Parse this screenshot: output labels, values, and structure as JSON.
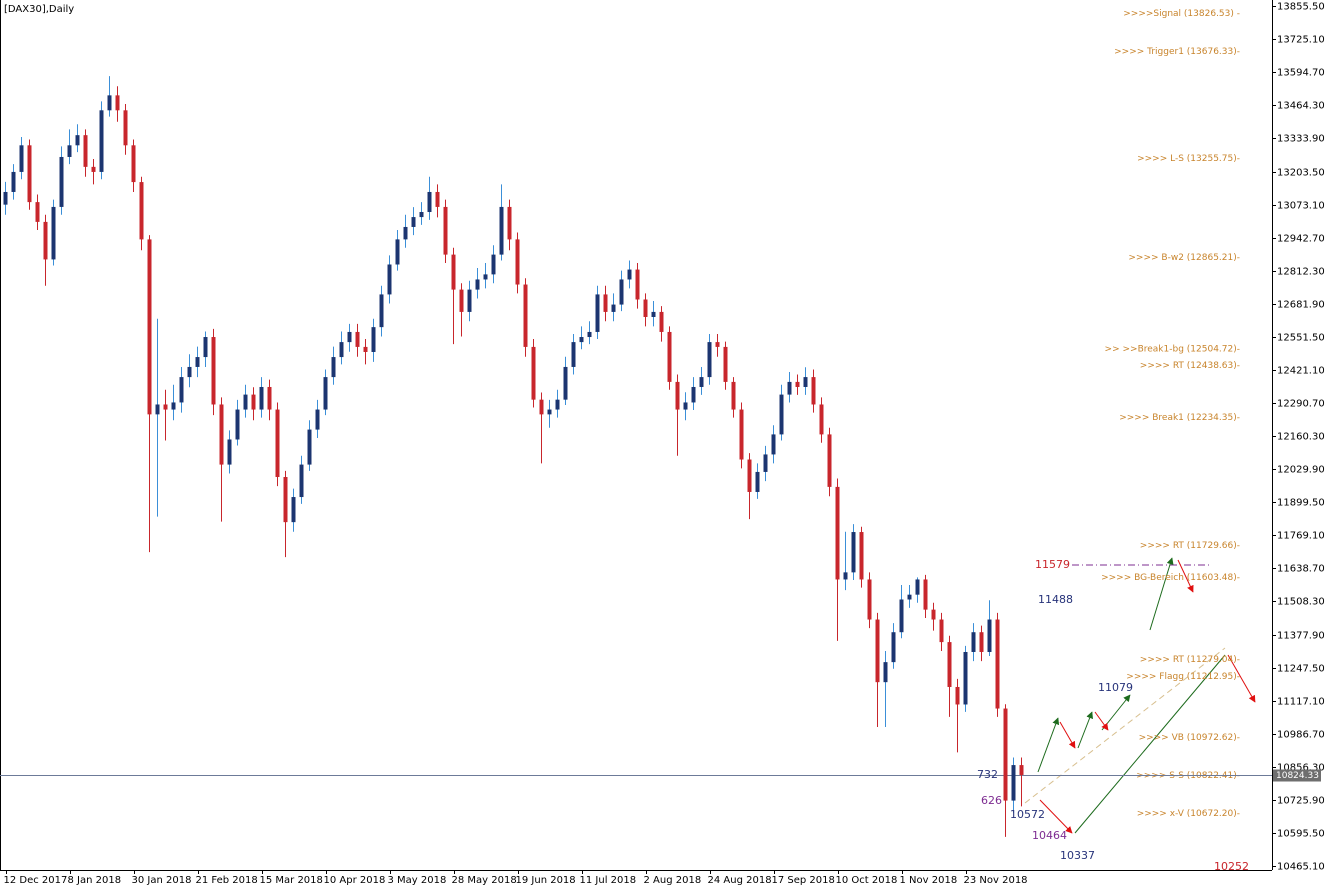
{
  "chart_data": {
    "type": "candlestick",
    "title": "[DAX30],Daily",
    "categories": [
      "12 Dec 2017",
      null,
      null,
      null,
      null,
      null,
      null,
      null,
      "8 Jan 2018",
      null,
      null,
      null,
      null,
      null,
      null,
      null,
      "30 Jan 2018",
      null,
      null,
      null,
      null,
      null,
      null,
      null,
      "21 Feb 2018",
      null,
      null,
      null,
      null,
      null,
      null,
      null,
      "15 Mar 2018",
      null,
      null,
      null,
      null,
      null,
      null,
      null,
      "10 Apr 2018",
      null,
      null,
      null,
      null,
      null,
      null,
      null,
      "3 May 2018",
      null,
      null,
      null,
      null,
      null,
      null,
      null,
      "28 May 2018",
      null,
      null,
      null,
      null,
      null,
      null,
      null,
      "19 Jun 2018",
      null,
      null,
      null,
      null,
      null,
      null,
      null,
      "11 Jul 2018",
      null,
      null,
      null,
      null,
      null,
      null,
      null,
      "2 Aug 2018",
      null,
      null,
      null,
      null,
      null,
      null,
      null,
      "24 Aug 2018",
      null,
      null,
      null,
      null,
      null,
      null,
      null,
      "17 Sep 2018",
      null,
      null,
      null,
      null,
      null,
      null,
      null,
      "10 Oct 2018",
      null,
      null,
      null,
      null,
      null,
      null,
      null,
      "1 Nov 2018",
      null,
      null,
      null,
      null,
      null,
      null,
      null,
      "23 Nov 2018",
      null,
      null,
      null,
      null,
      null,
      null,
      null
    ],
    "open": [
      13073,
      13123,
      13202,
      13307,
      13083,
      13005,
      12857,
      13064,
      13261,
      13307,
      13347,
      13222,
      13202,
      13445,
      13504,
      13445,
      13307,
      13162,
      12936,
      12246,
      12285,
      12265,
      12293,
      12393,
      12433,
      12472,
      12551,
      12285,
      12048,
      12147,
      12265,
      12324,
      12265,
      12354,
      12265,
      11999,
      11821,
      11920,
      12048,
      12186,
      12265,
      12393,
      12472,
      12531,
      12571,
      12512,
      12492,
      12590,
      12719,
      12837,
      12936,
      12985,
      13024,
      13044,
      13123,
      13064,
      12876,
      12738,
      12650,
      12738,
      12778,
      12798,
      12876,
      13064,
      12936,
      12758,
      12512,
      12304,
      12246,
      12265,
      12304,
      12433,
      12531,
      12551,
      12571,
      12719,
      12650,
      12679,
      12778,
      12817,
      12699,
      12630,
      12650,
      12571,
      12374,
      12265,
      12293,
      12354,
      12393,
      12531,
      12512,
      12374,
      12265,
      12068,
      11940,
      12019,
      12088,
      12167,
      12324,
      12374,
      12354,
      12393,
      12285,
      12167,
      11960,
      11595,
      11623,
      11782,
      11595,
      11437,
      11190,
      11269,
      11387,
      11516,
      11535,
      11595,
      11476,
      11437,
      11348,
      11171,
      11102,
      11309,
      11387,
      11309,
      11437,
      11086,
      10723,
      10863
    ],
    "high": [
      13163,
      13233,
      13340,
      13330,
      13113,
      13033,
      13093,
      13303,
      13370,
      13390,
      13370,
      13253,
      13480,
      13580,
      13540,
      13470,
      13330,
      13183,
      12953,
      12623,
      12343,
      12363,
      12433,
      12483,
      12513,
      12573,
      12583,
      12313,
      12183,
      12303,
      12363,
      12353,
      12393,
      12383,
      12293,
      12023,
      11953,
      12083,
      12223,
      12303,
      12423,
      12513,
      12573,
      12603,
      12603,
      12543,
      12623,
      12753,
      12873,
      12973,
      13033,
      13063,
      13083,
      13183,
      13153,
      13093,
      12903,
      12763,
      12773,
      12823,
      12843,
      12913,
      13153,
      13093,
      12963,
      12783,
      12543,
      12332,
      12303,
      12343,
      12473,
      12563,
      12593,
      12613,
      12753,
      12753,
      12723,
      12813,
      12853,
      12843,
      12723,
      12693,
      12673,
      12593,
      12403,
      12333,
      12393,
      12433,
      12563,
      12563,
      12533,
      12393,
      12293,
      12093,
      12053,
      12122,
      12203,
      12363,
      12413,
      12403,
      12432,
      12423,
      12313,
      12193,
      11993,
      11783,
      11813,
      11803,
      11623,
      11463,
      11313,
      11423,
      11573,
      11573,
      11603,
      11613,
      11503,
      11463,
      11373,
      11203,
      11333,
      11423,
      11413,
      11513,
      11463,
      11103,
      10893,
      10893
    ],
    "low": [
      13033,
      13093,
      13173,
      13053,
      12973,
      12753,
      12833,
      13033,
      13233,
      13280,
      13183,
      13153,
      13173,
      13420,
      13400,
      13270,
      13123,
      12893,
      11703,
      11843,
      12143,
      12223,
      12253,
      12353,
      12393,
      12433,
      12243,
      11823,
      12013,
      12123,
      12233,
      12223,
      12233,
      12223,
      11963,
      11683,
      11783,
      11893,
      12023,
      12153,
      12243,
      12363,
      12443,
      12493,
      12473,
      12443,
      12453,
      12553,
      12683,
      12813,
      12903,
      12953,
      12993,
      13013,
      13023,
      12843,
      12523,
      12553,
      12613,
      12703,
      12743,
      12763,
      12853,
      12893,
      12723,
      12473,
      12273,
      12053,
      12193,
      12233,
      12283,
      12403,
      12503,
      12523,
      12543,
      12613,
      12613,
      12653,
      12743,
      12663,
      12593,
      12593,
      12533,
      12343,
      12083,
      12223,
      12263,
      12323,
      12363,
      12473,
      12343,
      12233,
      12033,
      11833,
      11913,
      11983,
      12053,
      12143,
      12293,
      12323,
      12323,
      12253,
      12134,
      11923,
      11353,
      11553,
      11593,
      11563,
      11403,
      11013,
      11013,
      11243,
      11363,
      11483,
      11503,
      11443,
      11393,
      11313,
      11053,
      10913,
      11073,
      11273,
      11273,
      11293,
      11053,
      10580,
      10675,
      10700
    ],
    "close": [
      13123,
      13202,
      13307,
      13083,
      13005,
      12857,
      13064,
      13261,
      13307,
      13347,
      13222,
      13202,
      13445,
      13504,
      13445,
      13307,
      13162,
      12936,
      12246,
      12285,
      12265,
      12293,
      12393,
      12433,
      12472,
      12551,
      12285,
      12048,
      12147,
      12265,
      12324,
      12265,
      12354,
      12265,
      11999,
      11821,
      11920,
      12048,
      12186,
      12265,
      12393,
      12472,
      12531,
      12571,
      12512,
      12492,
      12590,
      12719,
      12837,
      12936,
      12985,
      13024,
      13044,
      13123,
      13064,
      12876,
      12738,
      12650,
      12738,
      12778,
      12798,
      12876,
      13064,
      12936,
      12758,
      12512,
      12304,
      12246,
      12265,
      12304,
      12433,
      12531,
      12551,
      12571,
      12719,
      12650,
      12679,
      12778,
      12817,
      12699,
      12630,
      12650,
      12571,
      12374,
      12265,
      12293,
      12354,
      12393,
      12531,
      12512,
      12374,
      12265,
      12068,
      11940,
      12019,
      12088,
      12167,
      12324,
      12374,
      12354,
      12393,
      12285,
      12167,
      11960,
      11595,
      11623,
      11782,
      11595,
      11437,
      11190,
      11269,
      11387,
      11516,
      11535,
      11595,
      11476,
      11437,
      11348,
      11171,
      11102,
      11309,
      11387,
      11309,
      11437,
      11086,
      10723,
      10863,
      10824
    ],
    "up_color": "#1c3570",
    "down_color": "#c8262c",
    "ylim": [
      10449.3,
      13880
    ],
    "yticks": [
      {
        "value": 13855.5,
        "label": "13855.50"
      },
      {
        "value": 13725.1,
        "label": "13725.10"
      },
      {
        "value": 13594.7,
        "label": "13594.70"
      },
      {
        "value": 13464.3,
        "label": "13464.30"
      },
      {
        "value": 13333.9,
        "label": "13333.90"
      },
      {
        "value": 13203.5,
        "label": "13203.50"
      },
      {
        "value": 13073.1,
        "label": "13073.10"
      },
      {
        "value": 12942.7,
        "label": "12942.70"
      },
      {
        "value": 12812.3,
        "label": "12812.30"
      },
      {
        "value": 12681.9,
        "label": "12681.90"
      },
      {
        "value": 12551.5,
        "label": "12551.50"
      },
      {
        "value": 12421.1,
        "label": "12421.10"
      },
      {
        "value": 12290.7,
        "label": "12290.70"
      },
      {
        "value": 12160.3,
        "label": "12160.30"
      },
      {
        "value": 12029.9,
        "label": "12029.90"
      },
      {
        "value": 11899.5,
        "label": "11899.50"
      },
      {
        "value": 11769.1,
        "label": "11769.10"
      },
      {
        "value": 11638.7,
        "label": "11638.70"
      },
      {
        "value": 11508.3,
        "label": "11508.30"
      },
      {
        "value": 11377.9,
        "label": "11377.90"
      },
      {
        "value": 11247.5,
        "label": "11247.50"
      },
      {
        "value": 11117.1,
        "label": "11117.10"
      },
      {
        "value": 10986.7,
        "label": "10986.70"
      },
      {
        "value": 10856.3,
        "label": "10856.30"
      },
      {
        "value": 10725.9,
        "label": "10725.90"
      },
      {
        "value": 10595.5,
        "label": "10595.50"
      },
      {
        "value": 10465.1,
        "label": "10465.10"
      }
    ],
    "current_price": 10824.33,
    "levels": [
      {
        "label": ">>>>Signal (13826.53) -",
        "value": 13826.53
      },
      {
        "label": ">>>> Trigger1 (13676.33)-",
        "value": 13676.33
      },
      {
        "label": ">>>> L-S (13255.75)-",
        "value": 13255.75
      },
      {
        "label": ">>>> B-w2 (12865.21)-",
        "value": 12865.21
      },
      {
        "label": ">> >>Break1-bg (12504.72)-",
        "value": 12504.72
      },
      {
        "label": ">>>> RT (12438.63)-",
        "value": 12438.63
      },
      {
        "label": ">>>> Break1 (12234.35)-",
        "value": 12234.35
      },
      {
        "label": ">>>> RT (11729.66)-",
        "value": 11729.66
      },
      {
        "label": ">>>> BG-Bereich (11603.48)-",
        "value": 11603.48
      },
      {
        "label": ">>>> RT (11279.04)-",
        "value": 11279.04
      },
      {
        "label": ">>>> Flagg (11212.95)-",
        "value": 11212.95
      },
      {
        "label": ">>>> VB (10972.62)-",
        "value": 10972.62
      },
      {
        "label": ">>>> S-S (10822.41)-",
        "value": 10822.41
      },
      {
        "label": ">>>> x-V (10672.20)-",
        "value": 10672.2
      }
    ],
    "level_color": "#c8842c",
    "annotations": [
      {
        "text": "11579",
        "color": "#c8262c"
      },
      {
        "text": "11488",
        "color": "#27337a"
      },
      {
        "text": "11079",
        "color": "#27337a"
      },
      {
        "text": "732",
        "color": "#27337a"
      },
      {
        "text": "626",
        "color": "#7d2c91"
      },
      {
        "text": "10572",
        "color": "#27337a"
      },
      {
        "text": "10464",
        "color": "#7d2c91"
      },
      {
        "text": "10337",
        "color": "#27337a"
      },
      {
        "text": "10252",
        "color": "#c8262c"
      }
    ]
  }
}
